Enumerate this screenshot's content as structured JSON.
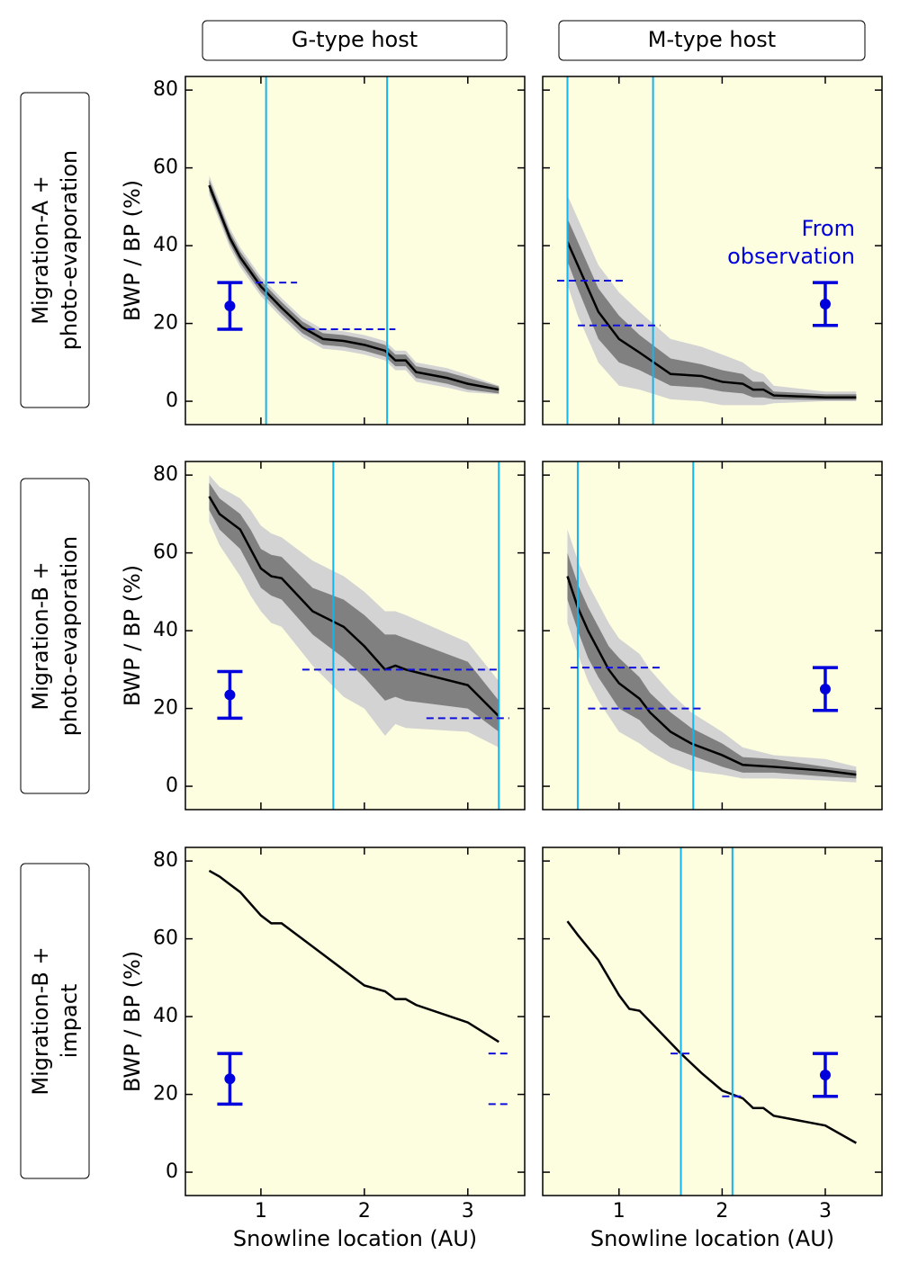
{
  "column_headers": [
    "G-type host",
    "M-type host"
  ],
  "row_headers": [
    [
      "Migration-A +",
      "photo-evaporation"
    ],
    [
      "Migration-B +",
      "photo-evaporation"
    ],
    [
      "Migration-B +",
      "impact"
    ]
  ],
  "chart_data": [
    {
      "type": "line",
      "ylabel": "BWP / BP (%)",
      "xticklabels": false,
      "yticklabels": true,
      "xlim": [
        0.27,
        3.55
      ],
      "ylim": [
        -6,
        83.5
      ],
      "xticks": [
        1,
        2,
        3
      ],
      "yticks": [
        0,
        20,
        40,
        60,
        80
      ],
      "x": [
        0.5,
        0.7,
        0.8,
        1.0,
        1.2,
        1.4,
        1.6,
        1.8,
        2.0,
        2.2,
        2.3,
        2.4,
        2.5,
        2.8,
        3.0,
        3.3
      ],
      "values": [
        55.5,
        42,
        37,
        29.5,
        24,
        19,
        16,
        15.5,
        14.5,
        13,
        10.5,
        10.5,
        7.5,
        6,
        4.5,
        3
      ],
      "band_inner": {
        "lower": [
          54,
          40.5,
          35.5,
          28,
          22.5,
          17.5,
          14.5,
          14,
          13,
          11.5,
          9,
          9,
          6,
          4.5,
          3,
          2
        ],
        "upper": [
          57,
          43.5,
          38.5,
          31,
          25.5,
          20.5,
          17.5,
          17,
          16,
          14.5,
          12,
          12,
          9,
          7.5,
          6,
          3.8
        ]
      },
      "band_outer": {
        "lower": [
          53,
          39.5,
          34.5,
          27,
          21.5,
          16.5,
          13.5,
          13,
          12,
          10.5,
          8,
          8,
          5,
          3.5,
          2.3,
          1.8
        ],
        "upper": [
          58,
          44.5,
          39.5,
          32,
          26.5,
          21.5,
          18.5,
          18,
          17,
          15.5,
          13,
          13,
          10,
          8.5,
          6.8,
          4
        ]
      },
      "observation": {
        "x": 0.7,
        "value": 24.5,
        "error": 6
      },
      "vlines": [
        1.05,
        2.22
      ],
      "hlines": [
        {
          "y": 30.5,
          "x": [
            0.95,
            1.35
          ]
        },
        {
          "y": 18.5,
          "x": [
            1.45,
            2.3
          ]
        }
      ]
    },
    {
      "type": "line",
      "xticklabels": false,
      "yticklabels": false,
      "xlim": [
        0.26,
        3.55
      ],
      "ylim": [
        -6,
        83.5
      ],
      "xticks": [
        1,
        2,
        3
      ],
      "yticks": [
        0,
        20,
        40,
        60,
        80
      ],
      "x": [
        0.5,
        0.6,
        0.8,
        1.0,
        1.2,
        1.5,
        1.8,
        2.0,
        2.2,
        2.3,
        2.4,
        2.5,
        3.0,
        3.3
      ],
      "values": [
        41,
        35,
        23,
        16,
        12.5,
        7,
        6.5,
        5,
        4.5,
        3,
        3,
        1.5,
        1,
        1
      ],
      "band_inner": {
        "lower": [
          36,
          29,
          16,
          10,
          8,
          4,
          3.5,
          2.5,
          2,
          1,
          1,
          0.5,
          0.3,
          0.3
        ],
        "upper": [
          47,
          41,
          29,
          22,
          17,
          11,
          9.5,
          8,
          7,
          5,
          5,
          2.5,
          1.8,
          1.8
        ]
      },
      "band_outer": {
        "lower": [
          30,
          22,
          10,
          4,
          3,
          0.5,
          0,
          -1,
          -1,
          -1,
          -1,
          -0.5,
          0,
          0
        ],
        "upper": [
          53,
          47,
          35,
          28,
          23,
          16,
          14,
          12,
          10,
          8,
          7,
          4,
          2.5,
          2.5
        ]
      },
      "observation": {
        "x": 3.0,
        "value": 25,
        "error": 5.5
      },
      "vlines": [
        0.5,
        1.33
      ],
      "hlines": [
        {
          "y": 31,
          "x": [
            0.4,
            1.05
          ]
        },
        {
          "y": 19.5,
          "x": [
            0.6,
            1.4
          ]
        }
      ],
      "annotation": [
        "From",
        "observation"
      ]
    },
    {
      "type": "line",
      "ylabel": "BWP / BP (%)",
      "xticklabels": false,
      "yticklabels": true,
      "xlim": [
        0.27,
        3.55
      ],
      "ylim": [
        -6,
        83.5
      ],
      "xticks": [
        1,
        2,
        3
      ],
      "yticks": [
        0,
        20,
        40,
        60,
        80
      ],
      "x": [
        0.5,
        0.6,
        0.8,
        0.9,
        1.0,
        1.1,
        1.2,
        1.5,
        1.8,
        2.0,
        2.2,
        2.3,
        2.4,
        3.0,
        3.3
      ],
      "values": [
        74.5,
        70,
        66,
        61,
        56,
        54,
        53.5,
        45,
        41,
        36,
        30,
        31,
        30,
        26,
        18
      ],
      "band_inner": {
        "lower": [
          71,
          66,
          61,
          56,
          51,
          49,
          48,
          39,
          33,
          28,
          22,
          23,
          22,
          20,
          14
        ],
        "upper": [
          78,
          74,
          70,
          66,
          61,
          59.5,
          59,
          51,
          48,
          44,
          39,
          39,
          38,
          32,
          22
        ]
      },
      "band_outer": {
        "lower": [
          68,
          62,
          54,
          49,
          45,
          42,
          41,
          31,
          23,
          20,
          13,
          16,
          15,
          14,
          10
        ],
        "upper": [
          80,
          77,
          74,
          71,
          67,
          65,
          64,
          58,
          54,
          50,
          45,
          45,
          44,
          37,
          27
        ]
      },
      "observation": {
        "x": 0.7,
        "value": 23.5,
        "error": 6
      },
      "vlines": [
        1.7,
        3.3
      ],
      "hlines": [
        {
          "y": 30,
          "x": [
            1.4,
            3.3
          ]
        },
        {
          "y": 17.5,
          "x": [
            2.6,
            3.4
          ]
        }
      ]
    },
    {
      "type": "line",
      "xticklabels": false,
      "yticklabels": false,
      "xlim": [
        0.26,
        3.55
      ],
      "ylim": [
        -6,
        83.5
      ],
      "xticks": [
        1,
        2,
        3
      ],
      "yticks": [
        0,
        20,
        40,
        60,
        80
      ],
      "x": [
        0.5,
        0.6,
        0.7,
        0.8,
        0.9,
        1.0,
        1.2,
        1.3,
        1.5,
        1.7,
        2.0,
        2.2,
        2.5,
        3.0,
        3.3
      ],
      "values": [
        54,
        46,
        40,
        35,
        30,
        26.5,
        22.5,
        19,
        14,
        11,
        8,
        5.5,
        5,
        4,
        3
      ],
      "band_inner": {
        "lower": [
          48,
          40,
          33,
          28,
          24,
          20,
          17,
          14,
          10,
          8,
          5,
          3.5,
          3.5,
          2.5,
          2
        ],
        "upper": [
          60,
          52,
          46,
          41,
          36,
          33,
          28,
          24,
          19,
          15,
          11,
          7.5,
          7,
          5,
          4
        ]
      },
      "band_outer": {
        "lower": [
          42,
          34,
          27,
          22,
          18,
          14,
          11,
          9,
          6,
          4,
          3,
          2,
          2,
          1.5,
          1
        ],
        "upper": [
          66,
          58,
          52,
          47,
          42,
          38,
          34,
          30,
          24,
          19,
          14,
          10,
          8,
          7,
          5
        ]
      },
      "observation": {
        "x": 3.0,
        "value": 25,
        "error": 5.5
      },
      "vlines": [
        0.6,
        1.72
      ],
      "hlines": [
        {
          "y": 30.5,
          "x": [
            0.53,
            1.43
          ]
        },
        {
          "y": 20,
          "x": [
            0.7,
            1.8
          ]
        }
      ]
    },
    {
      "type": "line",
      "ylabel": "BWP / BP (%)",
      "xlabel": "Snowline location (AU)",
      "xticklabels": true,
      "yticklabels": true,
      "xlim": [
        0.27,
        3.55
      ],
      "ylim": [
        -6,
        83.5
      ],
      "xticks": [
        1,
        2,
        3
      ],
      "yticks": [
        0,
        20,
        40,
        60,
        80
      ],
      "x": [
        0.5,
        0.6,
        0.8,
        1.0,
        1.1,
        1.2,
        1.5,
        1.8,
        2.0,
        2.2,
        2.3,
        2.4,
        2.5,
        3.0,
        3.3
      ],
      "values": [
        77.5,
        76,
        72,
        66,
        64,
        64,
        58,
        52,
        48,
        46.5,
        44.5,
        44.5,
        43,
        38.5,
        33.5
      ],
      "observation": {
        "x": 0.7,
        "value": 24,
        "error": 6.5
      },
      "vlines": [],
      "hlines": [
        {
          "y": 30.5,
          "x": [
            3.2,
            3.4
          ]
        },
        {
          "y": 17.5,
          "x": [
            3.2,
            3.4
          ]
        }
      ]
    },
    {
      "type": "line",
      "xlabel": "Snowline location (AU)",
      "xticklabels": true,
      "yticklabels": false,
      "xlim": [
        0.26,
        3.55
      ],
      "ylim": [
        -6,
        83.5
      ],
      "xticks": [
        1,
        2,
        3
      ],
      "yticks": [
        0,
        20,
        40,
        60,
        80
      ],
      "x": [
        0.5,
        0.6,
        0.8,
        1.0,
        1.1,
        1.2,
        1.4,
        1.6,
        1.8,
        2.0,
        2.2,
        2.3,
        2.4,
        2.5,
        3.0,
        3.3
      ],
      "values": [
        64.5,
        61,
        54.5,
        45.5,
        42,
        41.5,
        36,
        30.5,
        25.5,
        21,
        19,
        16.5,
        16.5,
        14.5,
        12,
        7.5
      ],
      "observation": {
        "x": 3.0,
        "value": 25,
        "error": 5.5
      },
      "vlines": [
        1.6,
        2.1
      ],
      "hlines": [
        {
          "y": 30.5,
          "x": [
            1.5,
            1.7
          ]
        },
        {
          "y": 19.5,
          "x": [
            2.0,
            2.2
          ]
        }
      ]
    }
  ]
}
